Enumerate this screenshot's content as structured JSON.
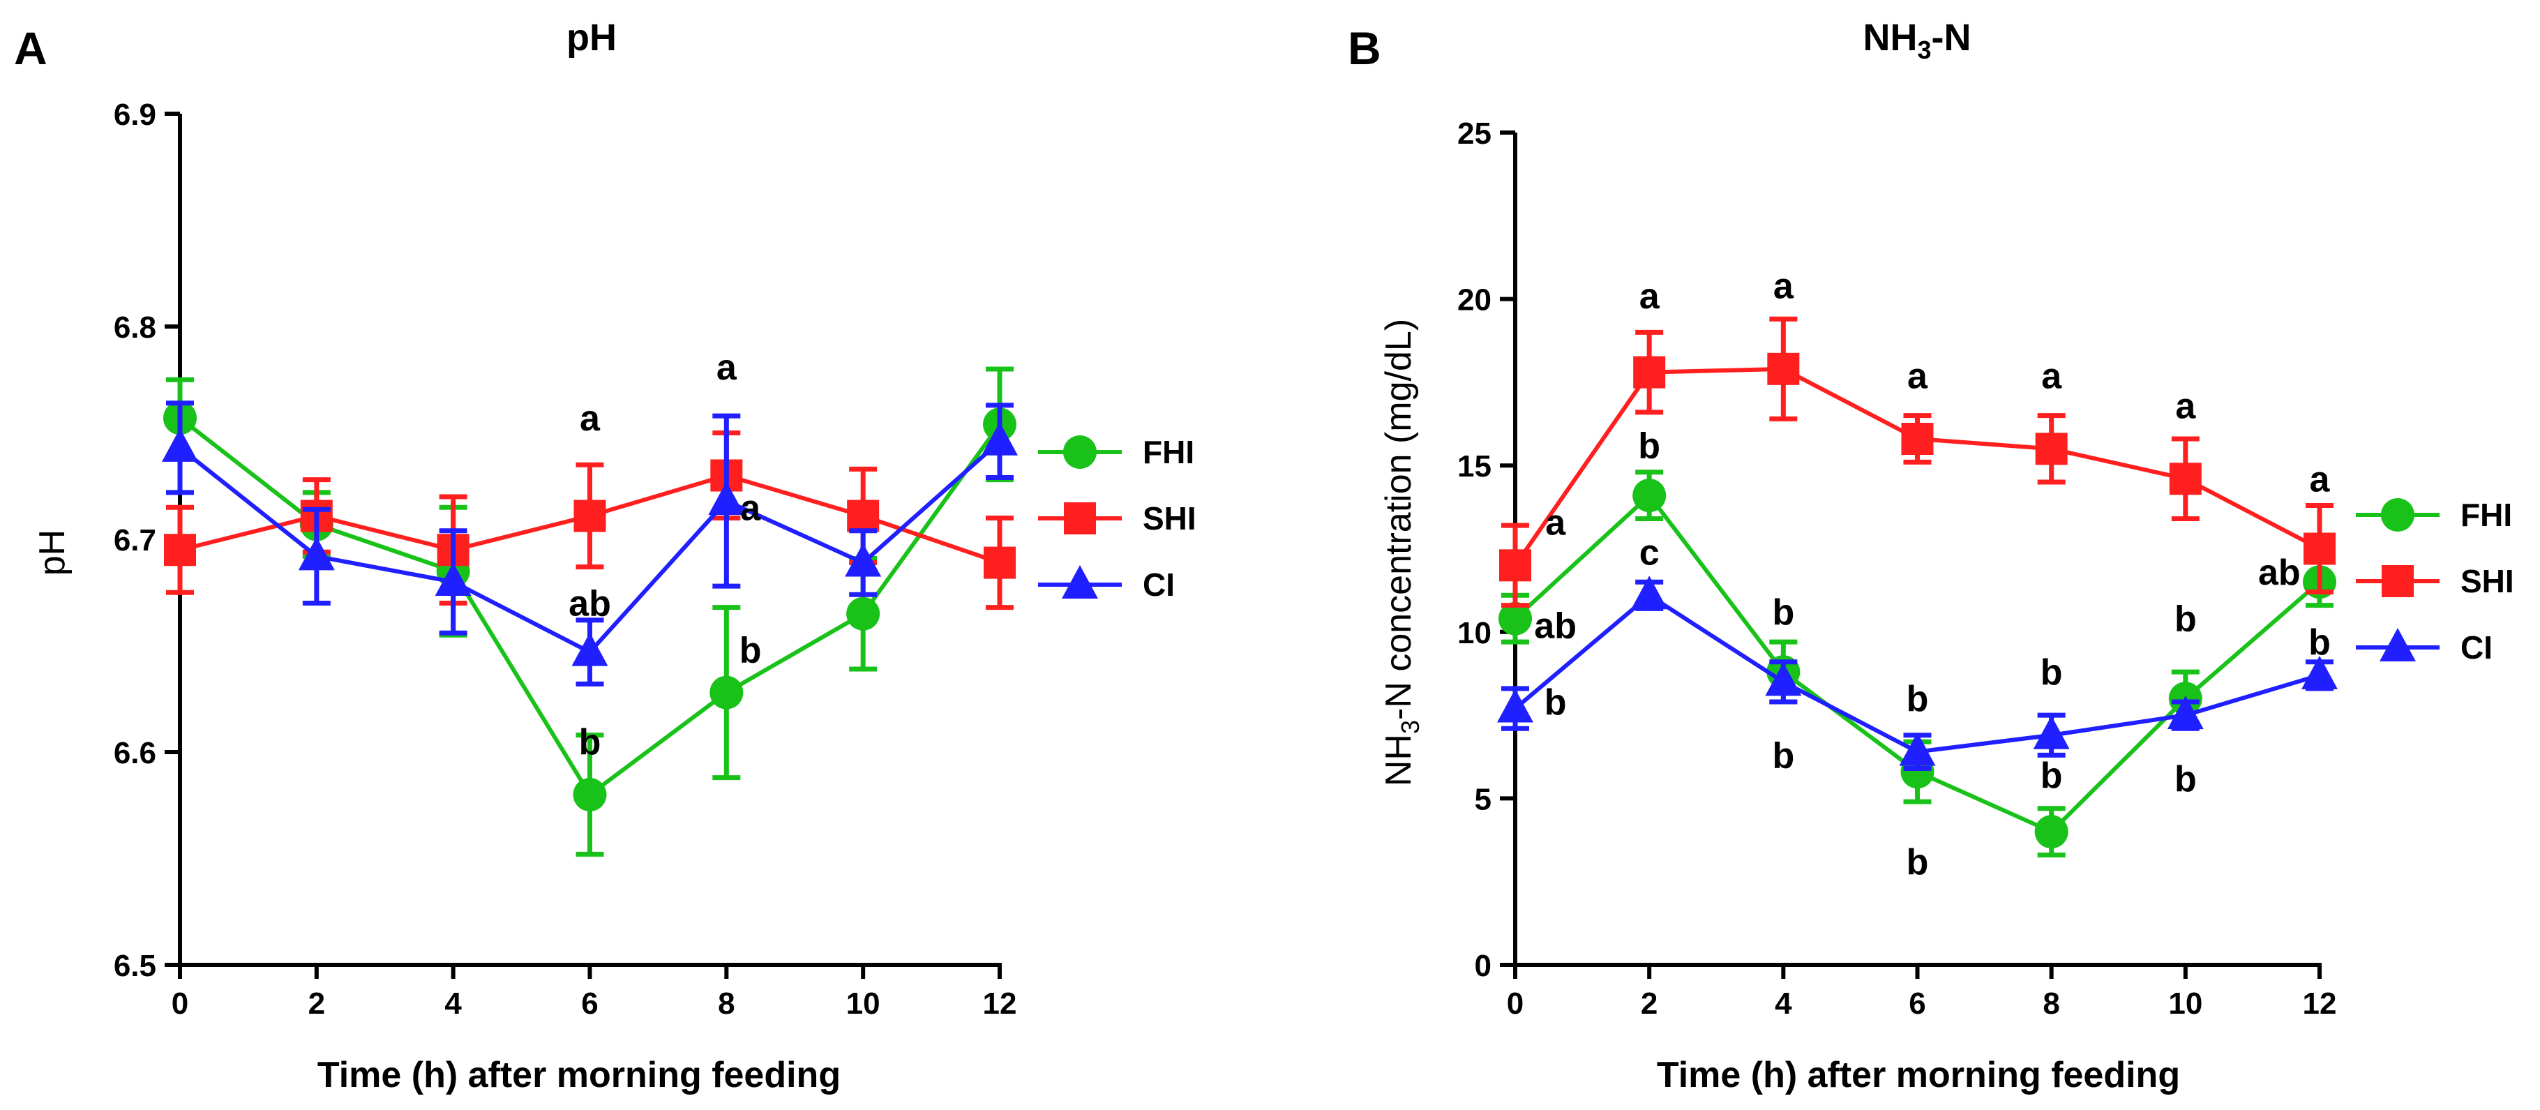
{
  "chart_data": [
    {
      "type": "line",
      "panel_label": "A",
      "title": "pH",
      "xlabel": "Time (h) after morning feeding",
      "ylabel": "pH",
      "x": [
        0,
        2,
        4,
        6,
        8,
        10,
        12
      ],
      "xlim": [
        0,
        12
      ],
      "xticks": [
        "0",
        "2",
        "4",
        "6",
        "8",
        "10",
        "12"
      ],
      "ylim": [
        6.5,
        6.9
      ],
      "yticks": [
        "6.5",
        "6.6",
        "6.7",
        "6.8",
        "6.9"
      ],
      "grid": false,
      "legend_position": "right",
      "series": [
        {
          "name": "FHI",
          "color": "#19c219",
          "marker": "circle",
          "values": [
            6.757,
            6.707,
            6.685,
            6.58,
            6.628,
            6.665,
            6.754
          ],
          "errors": [
            0.018,
            0.015,
            0.03,
            0.028,
            0.04,
            0.026,
            0.026
          ]
        },
        {
          "name": "SHI",
          "color": "#ff1f1f",
          "marker": "square",
          "values": [
            6.695,
            6.711,
            6.695,
            6.711,
            6.73,
            6.711,
            6.689
          ],
          "errors": [
            0.02,
            0.017,
            0.025,
            0.024,
            0.02,
            0.022,
            0.021
          ]
        },
        {
          "name": "CI",
          "color": "#1f1fff",
          "marker": "triangle",
          "values": [
            6.743,
            6.692,
            6.68,
            6.647,
            6.718,
            6.689,
            6.746
          ],
          "errors": [
            0.021,
            0.022,
            0.024,
            0.015,
            0.04,
            0.015,
            0.017
          ]
        }
      ],
      "annotations": [
        {
          "text": "a",
          "x": 6,
          "y": 6.757
        },
        {
          "text": "ab",
          "x": 6,
          "y": 6.67
        },
        {
          "text": "b",
          "x": 6,
          "y": 6.605
        },
        {
          "text": "a",
          "x": 8,
          "y": 6.781
        },
        {
          "text": "a",
          "x": 8.35,
          "y": 6.715
        },
        {
          "text": "b",
          "x": 8.35,
          "y": 6.648
        }
      ]
    },
    {
      "type": "line",
      "panel_label": "B",
      "title": "NH3-N",
      "xlabel": "Time (h) after morning feeding",
      "ylabel": "NH3-N concentration (mg/dL)",
      "x": [
        0,
        2,
        4,
        6,
        8,
        10,
        12
      ],
      "xlim": [
        0,
        12
      ],
      "xticks": [
        "0",
        "2",
        "4",
        "6",
        "8",
        "10",
        "12"
      ],
      "ylim": [
        0,
        25
      ],
      "yticks": [
        "0",
        "5",
        "10",
        "15",
        "20",
        "25"
      ],
      "grid": false,
      "legend_position": "right",
      "series": [
        {
          "name": "FHI",
          "color": "#19c219",
          "marker": "circle",
          "values": [
            10.4,
            14.1,
            8.8,
            5.8,
            4.0,
            8.0,
            11.5
          ],
          "errors": [
            0.7,
            0.7,
            0.9,
            0.9,
            0.7,
            0.8,
            0.7
          ]
        },
        {
          "name": "SHI",
          "color": "#ff1f1f",
          "marker": "square",
          "values": [
            12.0,
            17.8,
            17.9,
            15.8,
            15.5,
            14.6,
            12.5
          ],
          "errors": [
            1.2,
            1.2,
            1.5,
            0.7,
            1.0,
            1.2,
            1.3
          ]
        },
        {
          "name": "CI",
          "color": "#1f1fff",
          "marker": "triangle",
          "values": [
            7.7,
            11.1,
            8.5,
            6.4,
            6.9,
            7.5,
            8.7
          ],
          "errors": [
            0.6,
            0.4,
            0.6,
            0.5,
            0.6,
            0.4,
            0.4
          ]
        }
      ],
      "annotations": [
        {
          "text": "a",
          "x": 0.6,
          "y": 13.3
        },
        {
          "text": "ab",
          "x": 0.6,
          "y": 10.2
        },
        {
          "text": "b",
          "x": 0.6,
          "y": 7.9
        },
        {
          "text": "a",
          "x": 2,
          "y": 20.1
        },
        {
          "text": "b",
          "x": 2,
          "y": 15.6
        },
        {
          "text": "c",
          "x": 2,
          "y": 12.4
        },
        {
          "text": "a",
          "x": 4,
          "y": 20.4
        },
        {
          "text": "b",
          "x": 4,
          "y": 10.6
        },
        {
          "text": "b",
          "x": 4,
          "y": 6.3
        },
        {
          "text": "a",
          "x": 6,
          "y": 17.7
        },
        {
          "text": "b",
          "x": 6,
          "y": 8.0
        },
        {
          "text": "b",
          "x": 6,
          "y": 3.1
        },
        {
          "text": "a",
          "x": 8,
          "y": 17.7
        },
        {
          "text": "b",
          "x": 8,
          "y": 8.8
        },
        {
          "text": "b",
          "x": 8,
          "y": 5.7
        },
        {
          "text": "a",
          "x": 10,
          "y": 16.8
        },
        {
          "text": "b",
          "x": 10,
          "y": 10.4
        },
        {
          "text": "b",
          "x": 10,
          "y": 5.6
        },
        {
          "text": "a",
          "x": 12,
          "y": 14.6
        },
        {
          "text": "ab",
          "x": 11.4,
          "y": 11.8
        },
        {
          "text": "b",
          "x": 12,
          "y": 9.7
        }
      ]
    }
  ]
}
